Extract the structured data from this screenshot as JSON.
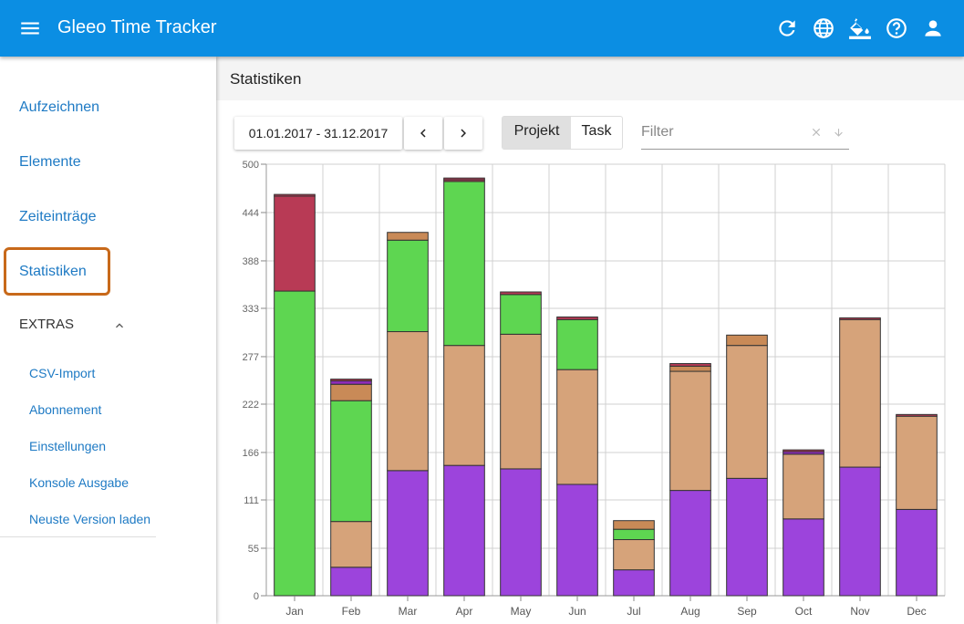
{
  "app": {
    "title": "Gleeo Time Tracker",
    "accent": "#0b8ee3",
    "icons": [
      "menu-icon",
      "refresh-icon",
      "globe-icon",
      "paint-bucket-icon",
      "help-icon",
      "account-icon"
    ]
  },
  "sidebar": {
    "items": [
      {
        "label": "Aufzeichnen"
      },
      {
        "label": "Elemente"
      },
      {
        "label": "Zeiteinträge"
      },
      {
        "label": "Statistiken",
        "highlighted": true
      }
    ],
    "extras_label": "EXTRAS",
    "extras_expanded": true,
    "sub_items": [
      {
        "label": "CSV-Import"
      },
      {
        "label": "Abonnement"
      },
      {
        "label": "Einstellungen"
      },
      {
        "label": "Konsole Ausgabe"
      },
      {
        "label": "Neuste Version laden"
      }
    ]
  },
  "main": {
    "title": "Statistiken",
    "date_range": "01.01.2017 - 31.12.2017",
    "toggle": {
      "options": [
        "Projekt",
        "Task"
      ],
      "selected": "Projekt"
    },
    "filter": {
      "placeholder": "Filter",
      "value": ""
    }
  },
  "chart_data": {
    "type": "bar",
    "stacked": true,
    "categories": [
      "Jan",
      "Feb",
      "Mar",
      "Apr",
      "May",
      "Jun",
      "Jul",
      "Aug",
      "Sep",
      "Oct",
      "Nov",
      "Dec"
    ],
    "yticks": [
      0,
      55,
      111,
      166,
      222,
      277,
      333,
      388,
      444,
      500
    ],
    "ylim": [
      0,
      500
    ],
    "grid": true,
    "colors": [
      "#9c44dc",
      "#d6a37a",
      "#5ed651",
      "#c98a57",
      "#8e2bb8",
      "#b83a55"
    ],
    "series": [
      {
        "values": [
          0,
          33,
          145,
          151,
          147,
          129,
          30,
          122,
          136,
          89,
          149,
          100
        ]
      },
      {
        "values": [
          0,
          53,
          161,
          139,
          156,
          133,
          35,
          138,
          154,
          75,
          171,
          108
        ]
      },
      {
        "values": [
          353,
          140,
          106,
          190,
          46,
          58,
          12,
          0,
          0,
          0,
          0,
          0
        ]
      },
      {
        "values": [
          0,
          19,
          9,
          0,
          0,
          0,
          10,
          6,
          12,
          0,
          0,
          0
        ]
      },
      {
        "values": [
          0,
          4,
          0,
          0,
          0,
          0,
          0,
          0,
          0,
          3,
          0,
          0
        ]
      },
      {
        "values": [
          110,
          0,
          0,
          2,
          0,
          0,
          0,
          0,
          0,
          0,
          0,
          0
        ]
      }
    ],
    "small_tops": [
      2,
      2,
      0,
      2,
      3,
      3,
      0,
      3,
      0,
      2,
      2,
      2
    ]
  }
}
